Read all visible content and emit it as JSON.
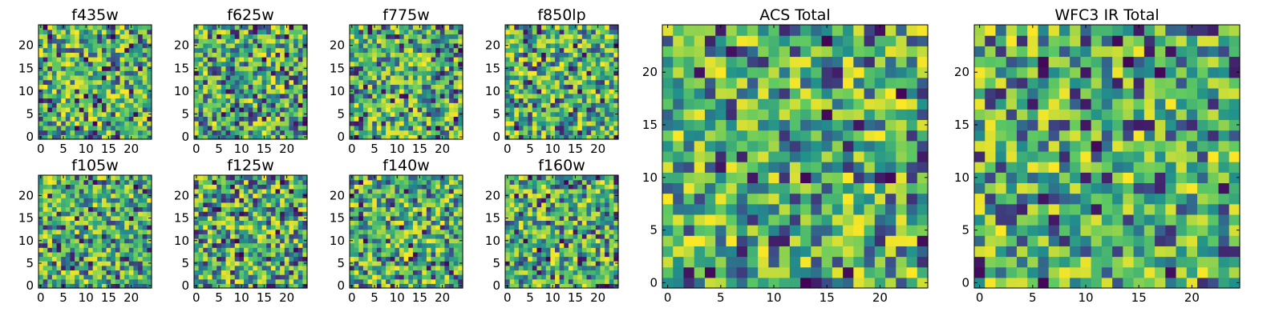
{
  "chart_data": [
    {
      "type": "heatmap",
      "title": "f435w",
      "xticks": [
        "0",
        "5",
        "10",
        "15",
        "20"
      ],
      "yticks": [
        "0",
        "5",
        "10",
        "15",
        "20"
      ],
      "xlim": [
        0,
        25
      ],
      "ylim": [
        0,
        25
      ],
      "grid_size": 25,
      "seed": 11
    },
    {
      "type": "heatmap",
      "title": "f625w",
      "xticks": [
        "0",
        "5",
        "10",
        "15",
        "20"
      ],
      "yticks": [
        "0",
        "5",
        "10",
        "15",
        "20"
      ],
      "xlim": [
        0,
        25
      ],
      "ylim": [
        0,
        25
      ],
      "grid_size": 25,
      "seed": 23
    },
    {
      "type": "heatmap",
      "title": "f775w",
      "xticks": [
        "0",
        "5",
        "10",
        "15",
        "20"
      ],
      "yticks": [
        "0",
        "5",
        "10",
        "15",
        "20"
      ],
      "xlim": [
        0,
        25
      ],
      "ylim": [
        0,
        25
      ],
      "grid_size": 25,
      "seed": 37
    },
    {
      "type": "heatmap",
      "title": "f850lp",
      "xticks": [
        "0",
        "5",
        "10",
        "15",
        "20"
      ],
      "yticks": [
        "0",
        "5",
        "10",
        "15",
        "20"
      ],
      "xlim": [
        0,
        25
      ],
      "ylim": [
        0,
        25
      ],
      "grid_size": 25,
      "seed": 41
    },
    {
      "type": "heatmap",
      "title": "f105w",
      "xticks": [
        "0",
        "5",
        "10",
        "15",
        "20"
      ],
      "yticks": [
        "0",
        "5",
        "10",
        "15",
        "20"
      ],
      "xlim": [
        0,
        25
      ],
      "ylim": [
        0,
        25
      ],
      "grid_size": 25,
      "seed": 53
    },
    {
      "type": "heatmap",
      "title": "f125w",
      "xticks": [
        "0",
        "5",
        "10",
        "15",
        "20"
      ],
      "yticks": [
        "0",
        "5",
        "10",
        "15",
        "20"
      ],
      "xlim": [
        0,
        25
      ],
      "ylim": [
        0,
        25
      ],
      "grid_size": 25,
      "seed": 67
    },
    {
      "type": "heatmap",
      "title": "f140w",
      "xticks": [
        "0",
        "5",
        "10",
        "15",
        "20"
      ],
      "yticks": [
        "0",
        "5",
        "10",
        "15",
        "20"
      ],
      "xlim": [
        0,
        25
      ],
      "ylim": [
        0,
        25
      ],
      "grid_size": 25,
      "seed": 79
    },
    {
      "type": "heatmap",
      "title": "f160w",
      "xticks": [
        "0",
        "5",
        "10",
        "15",
        "20"
      ],
      "yticks": [
        "0",
        "5",
        "10",
        "15",
        "20"
      ],
      "xlim": [
        0,
        25
      ],
      "ylim": [
        0,
        25
      ],
      "grid_size": 25,
      "seed": 83
    },
    {
      "type": "heatmap",
      "title": "ACS Total",
      "xticks": [
        "0",
        "5",
        "10",
        "15",
        "20"
      ],
      "yticks": [
        "0",
        "5",
        "10",
        "15",
        "20"
      ],
      "xlim": [
        0,
        25
      ],
      "ylim": [
        0,
        25
      ],
      "grid_size": 25,
      "seed": 97
    },
    {
      "type": "heatmap",
      "title": "WFC3 IR Total",
      "xticks": [
        "0",
        "5",
        "10",
        "15",
        "20"
      ],
      "yticks": [
        "0",
        "5",
        "10",
        "15",
        "20"
      ],
      "xlim": [
        0,
        25
      ],
      "ylim": [
        0,
        25
      ],
      "grid_size": 25,
      "seed": 101
    }
  ],
  "colors": {
    "colormap": [
      "#440154",
      "#3b528b",
      "#21918c",
      "#5ec962",
      "#fde725"
    ],
    "frame": "#000000"
  }
}
